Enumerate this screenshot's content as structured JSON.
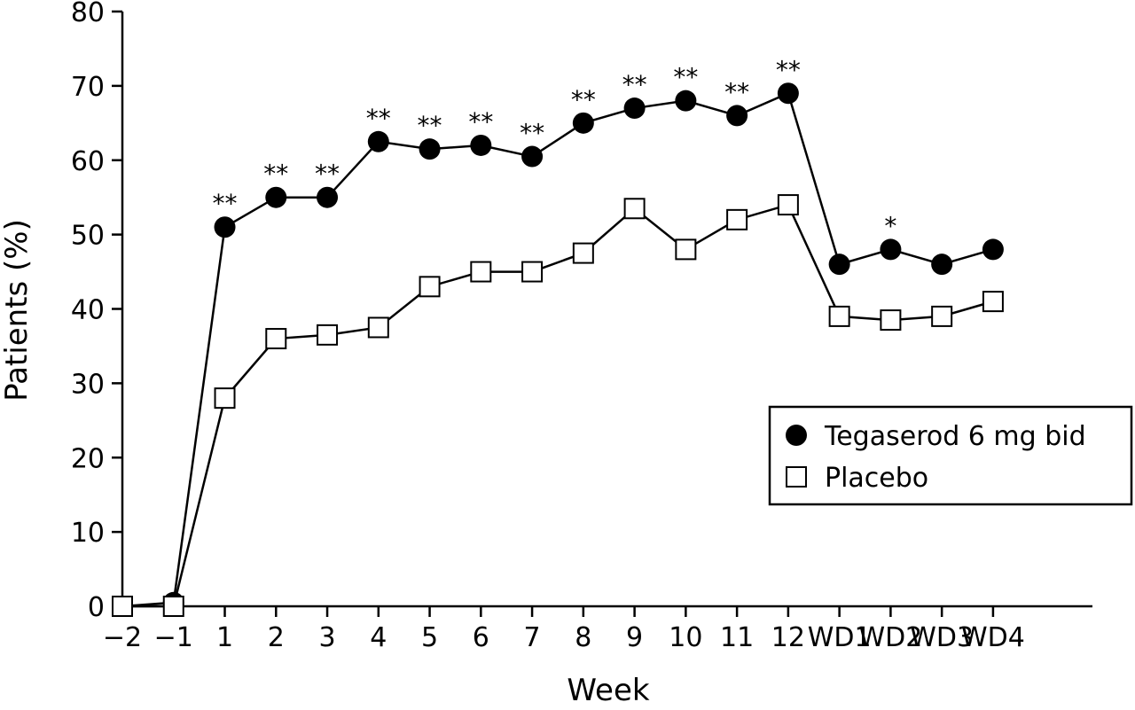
{
  "chart_data": {
    "type": "line",
    "xlabel": "Week",
    "ylabel": "Patients (%)",
    "categories": [
      "−2",
      "−1",
      "1",
      "2",
      "3",
      "4",
      "5",
      "6",
      "7",
      "8",
      "9",
      "10",
      "11",
      "12",
      "WD1",
      "WD2",
      "WD3",
      "WD4"
    ],
    "ylim": [
      0,
      80
    ],
    "yticks": [
      0,
      10,
      20,
      30,
      40,
      50,
      60,
      70,
      80
    ],
    "grid": false,
    "legend_position": "right",
    "series": [
      {
        "name": "Tegaserod 6 mg bid",
        "marker": "filled-circle",
        "values": [
          0,
          0.5,
          51,
          55,
          55,
          62.5,
          61.5,
          62,
          60.5,
          65,
          67,
          68,
          66,
          69,
          46,
          48,
          46,
          48
        ],
        "annotations": [
          "",
          "",
          "**",
          "**",
          "**",
          "**",
          "**",
          "**",
          "**",
          "**",
          "**",
          "**",
          "**",
          "**",
          "",
          "*",
          "",
          ""
        ]
      },
      {
        "name": "Placebo",
        "marker": "open-square",
        "values": [
          0,
          0,
          28,
          36,
          36.5,
          37.5,
          43,
          45,
          45,
          47.5,
          53.5,
          48,
          52,
          54,
          39,
          38.5,
          39,
          41
        ]
      }
    ]
  }
}
